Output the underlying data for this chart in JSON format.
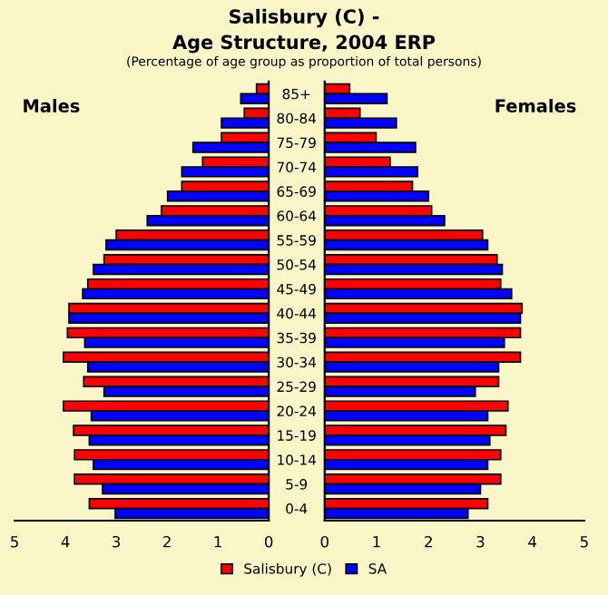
{
  "chart_data": [
    {
      "type": "bar",
      "orientation": "horizontal",
      "title": "Salisbury (C) -\nAge Structure, 2004 ERP",
      "subtitle": "(Percentage of age group as proportion of total persons)",
      "annotations": [
        "Males"
      ],
      "legend": "bottom",
      "categories": [
        "85+",
        "80-84",
        "75-79",
        "70-74",
        "65-69",
        "60-64",
        "55-59",
        "50-54",
        "45-49",
        "40-44",
        "35-39",
        "30-34",
        "25-29",
        "20-24",
        "15-19",
        "10-14",
        "5-9",
        "0-4"
      ],
      "xlim": [
        5,
        0
      ],
      "xticks": [
        5,
        4,
        3,
        2,
        1,
        0
      ],
      "series": [
        {
          "name": "Salisbury (C)",
          "color": "#ff0000",
          "values": [
            0.24,
            0.48,
            0.93,
            1.3,
            1.71,
            2.11,
            3.0,
            3.24,
            3.56,
            3.93,
            3.96,
            4.04,
            3.64,
            4.04,
            3.84,
            3.82,
            3.82,
            3.53
          ]
        },
        {
          "name": "SA",
          "color": "#0000ff",
          "values": [
            0.55,
            0.93,
            1.49,
            1.71,
            1.99,
            2.39,
            3.2,
            3.45,
            3.66,
            3.93,
            3.62,
            3.56,
            3.24,
            3.49,
            3.53,
            3.45,
            3.27,
            3.02
          ]
        }
      ]
    },
    {
      "type": "bar",
      "orientation": "horizontal",
      "annotations": [
        "Females"
      ],
      "tick_labels": "x",
      "categories": [
        null,
        null,
        null,
        null,
        null,
        null,
        null,
        null,
        null,
        null,
        null,
        null,
        null,
        null,
        null,
        null,
        null,
        null
      ],
      "xlim": [
        0,
        5
      ],
      "xticks": [
        0,
        1,
        2,
        3,
        4,
        5
      ],
      "series": [
        {
          "color": "#ff0000",
          "values": [
            0.48,
            0.68,
            0.99,
            1.26,
            1.69,
            2.06,
            3.04,
            3.32,
            3.39,
            3.8,
            3.77,
            3.77,
            3.35,
            3.53,
            3.49,
            3.39,
            3.39,
            3.14
          ]
        },
        {
          "color": "#0000ff",
          "values": [
            1.2,
            1.38,
            1.75,
            1.79,
            2.0,
            2.31,
            3.14,
            3.42,
            3.6,
            3.77,
            3.46,
            3.35,
            2.9,
            3.14,
            3.18,
            3.14,
            3.0,
            2.76
          ]
        }
      ]
    }
  ]
}
